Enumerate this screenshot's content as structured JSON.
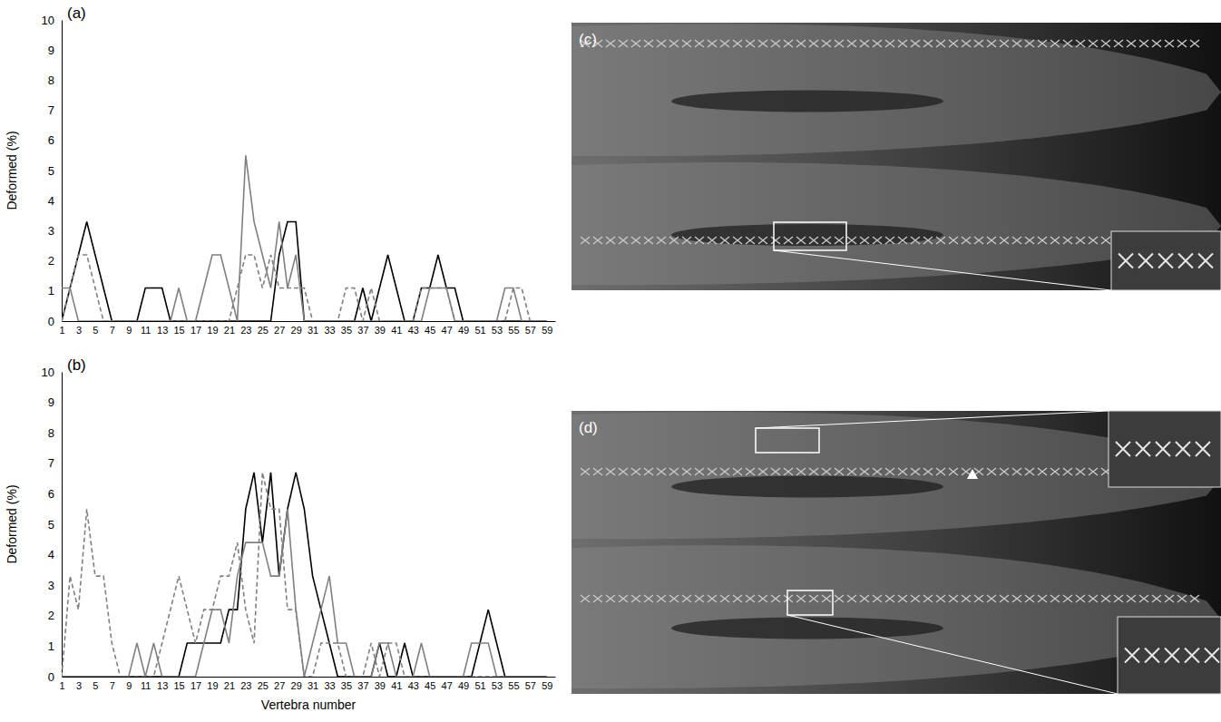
{
  "chart_data": [
    {
      "type": "line",
      "title": "(a)",
      "ylabel": "Deformed (%)",
      "x": [
        1,
        2,
        3,
        4,
        5,
        6,
        7,
        8,
        9,
        10,
        11,
        12,
        13,
        14,
        15,
        16,
        17,
        18,
        19,
        20,
        21,
        22,
        23,
        24,
        25,
        26,
        27,
        28,
        29,
        30,
        31,
        32,
        33,
        34,
        35,
        36,
        37,
        38,
        39,
        40,
        41,
        42,
        43,
        44,
        45,
        46,
        47,
        48,
        49,
        50,
        51,
        52,
        53,
        54,
        55,
        56,
        57,
        58,
        59
      ],
      "xlim": [
        1,
        60
      ],
      "xticks": [
        1,
        3,
        5,
        7,
        9,
        11,
        13,
        15,
        17,
        19,
        21,
        23,
        25,
        27,
        29,
        31,
        33,
        35,
        37,
        39,
        41,
        43,
        45,
        47,
        49,
        51,
        53,
        55,
        57,
        59
      ],
      "ylim": [
        0,
        10
      ],
      "yticks": [
        0,
        1,
        2,
        3,
        4,
        5,
        6,
        7,
        8,
        9,
        10
      ],
      "series": [
        {
          "color": "#000000",
          "line_style": "solid",
          "values": [
            0,
            1.1,
            2.2,
            3.3,
            2.2,
            1.1,
            0,
            0,
            0,
            0,
            1.1,
            1.1,
            1.1,
            0,
            0,
            0,
            0,
            0,
            0,
            0,
            0,
            0,
            0,
            0,
            0,
            0,
            2.2,
            3.3,
            3.3,
            0,
            0,
            0,
            0,
            0,
            0,
            0,
            1.1,
            0,
            1.1,
            2.2,
            1.1,
            0,
            0,
            1.1,
            1.1,
            2.2,
            1.1,
            1.1,
            0,
            0,
            0,
            0,
            0,
            0,
            0,
            0,
            0,
            0,
            0
          ]
        },
        {
          "color": "#808080",
          "line_style": "solid",
          "values": [
            1.1,
            1.1,
            0,
            0,
            0,
            0,
            0,
            0,
            0,
            0,
            0,
            0,
            0,
            0,
            1.1,
            0,
            0,
            1.1,
            2.2,
            2.2,
            1.1,
            0,
            5.5,
            3.3,
            2.2,
            1.1,
            3.3,
            1.1,
            2.2,
            0,
            0,
            0,
            0,
            0,
            0,
            0,
            0,
            0,
            0,
            0,
            0,
            0,
            0,
            0,
            1.1,
            1.1,
            1.1,
            0,
            0,
            0,
            0,
            0,
            0,
            1.1,
            1.1,
            0,
            0,
            0,
            0
          ]
        },
        {
          "color": "#808080",
          "line_style": "dashed",
          "values": [
            0,
            1.1,
            2.2,
            2.2,
            1.1,
            0,
            0,
            0,
            0,
            0,
            0,
            0,
            0,
            0,
            0,
            0,
            0,
            0,
            0,
            0,
            0,
            1.1,
            2.2,
            2.2,
            1.1,
            2.2,
            1.1,
            1.1,
            1.1,
            1.1,
            0,
            0,
            0,
            0,
            1.1,
            1.1,
            0,
            1.1,
            0,
            0,
            0,
            0,
            0,
            1.1,
            1.1,
            1.1,
            1.1,
            0,
            0,
            0,
            0,
            0,
            0,
            0,
            1.1,
            1.1,
            0,
            0,
            0
          ]
        }
      ]
    },
    {
      "type": "line",
      "title": "(b)",
      "ylabel": "Deformed (%)",
      "xlabel": "Vertebra number",
      "x": [
        1,
        2,
        3,
        4,
        5,
        6,
        7,
        8,
        9,
        10,
        11,
        12,
        13,
        14,
        15,
        16,
        17,
        18,
        19,
        20,
        21,
        22,
        23,
        24,
        25,
        26,
        27,
        28,
        29,
        30,
        31,
        32,
        33,
        34,
        35,
        36,
        37,
        38,
        39,
        40,
        41,
        42,
        43,
        44,
        45,
        46,
        47,
        48,
        49,
        50,
        51,
        52,
        53,
        54,
        55,
        56,
        57,
        58,
        59
      ],
      "xlim": [
        1,
        60
      ],
      "xticks": [
        1,
        3,
        5,
        7,
        9,
        11,
        13,
        15,
        17,
        19,
        21,
        23,
        25,
        27,
        29,
        31,
        33,
        35,
        37,
        39,
        41,
        43,
        45,
        47,
        49,
        51,
        53,
        55,
        57,
        59
      ],
      "ylim": [
        0,
        10
      ],
      "yticks": [
        0,
        1,
        2,
        3,
        4,
        5,
        6,
        7,
        8,
        9,
        10
      ],
      "series": [
        {
          "color": "#000000",
          "line_style": "solid",
          "values": [
            0,
            0,
            0,
            0,
            0,
            0,
            0,
            0,
            0,
            0,
            0,
            0,
            0,
            0,
            0,
            1.1,
            1.1,
            1.1,
            1.1,
            1.1,
            2.2,
            2.2,
            5.5,
            6.7,
            4.4,
            6.7,
            3.3,
            5.5,
            6.7,
            5.5,
            3.3,
            2.2,
            1.1,
            0,
            0,
            0,
            0,
            0,
            1.1,
            0,
            0,
            1.1,
            0,
            0,
            0,
            0,
            0,
            0,
            0,
            0,
            1.1,
            2.2,
            1.1,
            0,
            0,
            0,
            0,
            0,
            0
          ]
        },
        {
          "color": "#808080",
          "line_style": "solid",
          "values": [
            0,
            0,
            0,
            0,
            0,
            0,
            0,
            0,
            0,
            1.1,
            0,
            1.1,
            0,
            0,
            0,
            0,
            0,
            1.1,
            2.2,
            2.2,
            1.1,
            3.3,
            4.4,
            4.4,
            4.4,
            3.3,
            3.3,
            5.5,
            2.2,
            0,
            1.1,
            2.2,
            3.3,
            1.1,
            1.1,
            0,
            0,
            0,
            1.1,
            1.1,
            0,
            0,
            0,
            1.1,
            0,
            0,
            0,
            0,
            0,
            1.1,
            1.1,
            1.1,
            0,
            0,
            0,
            0,
            0,
            0,
            0
          ]
        },
        {
          "color": "#808080",
          "line_style": "dashed",
          "values": [
            0,
            3.3,
            2.2,
            5.5,
            3.3,
            3.3,
            1.1,
            0,
            0,
            0,
            0,
            0,
            1.1,
            2.2,
            3.3,
            2.2,
            1.1,
            2.2,
            2.2,
            3.3,
            3.3,
            4.4,
            2.2,
            1.1,
            6.7,
            5.5,
            5.5,
            2.2,
            2.2,
            0,
            0,
            1.1,
            1.1,
            1.1,
            0,
            0,
            0,
            1.1,
            0,
            1.1,
            1.1,
            0,
            0,
            0,
            0,
            0,
            0,
            0,
            0,
            0,
            0,
            0,
            0,
            0,
            0,
            0,
            0,
            0,
            0
          ]
        }
      ]
    }
  ],
  "image_panels": [
    {
      "label": "(c)"
    },
    {
      "label": "(d)"
    }
  ]
}
